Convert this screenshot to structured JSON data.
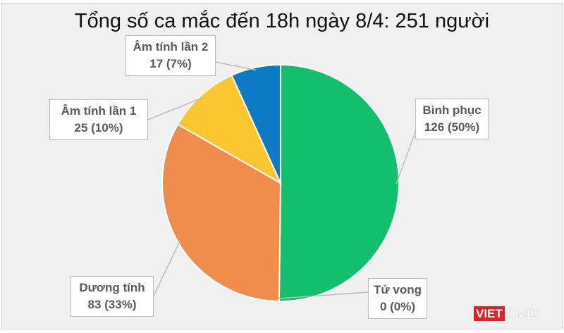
{
  "chart_data": {
    "type": "pie",
    "title": "Tổng số ca mắc đến 18h ngày 8/4: 251 người",
    "total": 251,
    "slices": [
      {
        "name": "Bình phục",
        "value": 126,
        "percent": "50%",
        "label_value": "126 (50%)",
        "color": "#13be6c"
      },
      {
        "name": "Tử vong",
        "value": 0,
        "percent": "0%",
        "label_value": "0 (0%)",
        "color": "#13be6c"
      },
      {
        "name": "Dương tính",
        "value": 83,
        "percent": "33%",
        "label_value": "83 (33%)",
        "color": "#f08c4c"
      },
      {
        "name": "Âm tính lần 1",
        "value": 25,
        "percent": "10%",
        "label_value": "25 (10%)",
        "color": "#fcc630"
      },
      {
        "name": "Âm tính lần 2",
        "value": 17,
        "percent": "7%",
        "label_value": "17 (7%)",
        "color": "#0c7bc4"
      }
    ],
    "start_angle": "top, clockwise",
    "legend": "none (callout labels)"
  },
  "logo": {
    "part1": "VIET",
    "part2": "TIMES"
  }
}
